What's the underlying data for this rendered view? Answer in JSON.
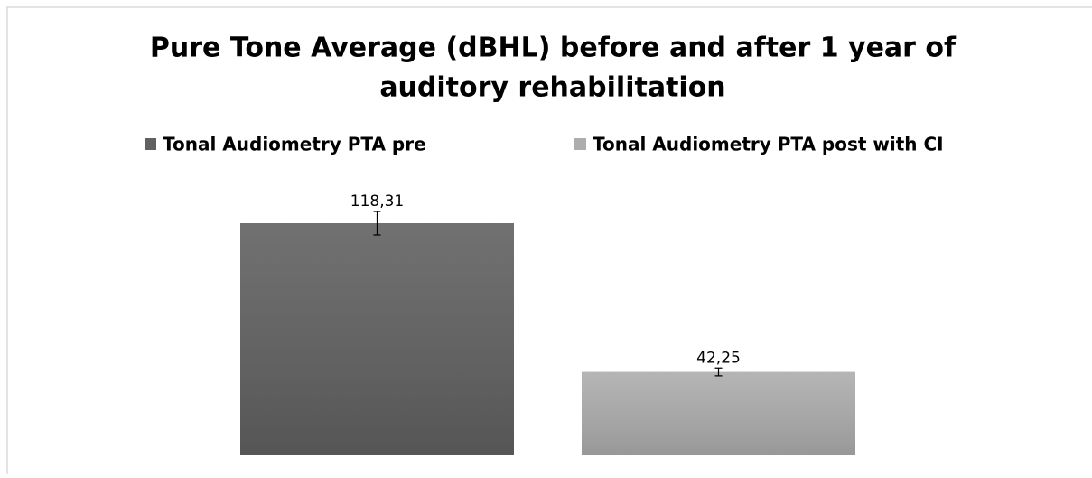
{
  "chart_data": {
    "type": "bar",
    "title": "Pure Tone Average (dBHL) before and after 1 year of auditory rehabilitation",
    "title_lines": [
      "Pure Tone Average (dBHL) before and after 1 year of",
      "auditory rehabilitation"
    ],
    "categories": [
      null
    ],
    "series": [
      {
        "name": "Tonal Audiometry PTA pre",
        "color": "#616161",
        "values": [
          118.31
        ],
        "value_labels": [
          "118,31"
        ],
        "errors": [
          6
        ]
      },
      {
        "name": "Tonal Audiometry PTA post with CI",
        "color": "#adadad",
        "values": [
          42.25
        ],
        "value_labels": [
          "42,25"
        ],
        "errors": [
          2
        ]
      }
    ],
    "legend": "top"
  }
}
